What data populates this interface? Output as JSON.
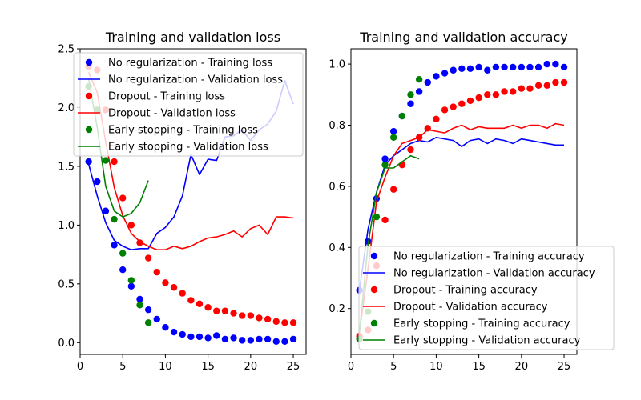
{
  "chart_data": [
    {
      "type": "line",
      "title": "Training and validation loss",
      "xlabel": "",
      "ylabel": "",
      "xlim": [
        0,
        26.5
      ],
      "ylim": [
        -0.1,
        2.5
      ],
      "xticks": [
        0,
        5,
        10,
        15,
        20,
        25
      ],
      "yticks": [
        0.0,
        0.5,
        1.0,
        1.5,
        2.0,
        2.5
      ],
      "legend_position": "top-right",
      "series": [
        {
          "name": "No regularization - Training loss",
          "kind": "scatter",
          "color": "#0000ff",
          "x": [
            1,
            2,
            3,
            4,
            5,
            6,
            7,
            8,
            9,
            10,
            11,
            12,
            13,
            14,
            15,
            16,
            17,
            18,
            19,
            20,
            21,
            22,
            23,
            24,
            25
          ],
          "values": [
            1.54,
            1.37,
            1.12,
            0.83,
            0.62,
            0.48,
            0.37,
            0.28,
            0.2,
            0.13,
            0.09,
            0.07,
            0.05,
            0.05,
            0.04,
            0.06,
            0.03,
            0.04,
            0.02,
            0.02,
            0.03,
            0.03,
            0.01,
            0.01,
            0.03
          ]
        },
        {
          "name": "No regularization - Validation loss",
          "kind": "line",
          "color": "#0000ff",
          "x": [
            1,
            2,
            3,
            4,
            5,
            6,
            7,
            8,
            9,
            10,
            11,
            12,
            13,
            14,
            15,
            16,
            17,
            18,
            19,
            20,
            21,
            22,
            23,
            24,
            25
          ],
          "values": [
            1.52,
            1.25,
            1.02,
            0.87,
            0.82,
            0.79,
            0.8,
            0.8,
            0.93,
            0.98,
            1.07,
            1.25,
            1.6,
            1.43,
            1.56,
            1.55,
            1.75,
            1.76,
            1.81,
            1.72,
            1.81,
            1.86,
            1.97,
            2.23,
            2.03
          ]
        },
        {
          "name": "Dropout - Training loss",
          "kind": "scatter",
          "color": "#ff0000",
          "x": [
            1,
            2,
            3,
            4,
            5,
            6,
            7,
            8,
            9,
            10,
            11,
            12,
            13,
            14,
            15,
            16,
            17,
            18,
            19,
            20,
            21,
            22,
            23,
            24,
            25
          ],
          "values": [
            2.35,
            2.32,
            1.98,
            1.54,
            1.23,
            1.0,
            0.85,
            0.72,
            0.6,
            0.51,
            0.47,
            0.42,
            0.36,
            0.33,
            0.3,
            0.27,
            0.27,
            0.25,
            0.23,
            0.23,
            0.21,
            0.2,
            0.18,
            0.17,
            0.17
          ]
        },
        {
          "name": "Dropout - Validation loss",
          "kind": "line",
          "color": "#ff0000",
          "x": [
            1,
            2,
            3,
            4,
            5,
            6,
            7,
            8,
            9,
            10,
            11,
            12,
            13,
            14,
            15,
            16,
            17,
            18,
            19,
            20,
            21,
            22,
            23,
            24,
            25
          ],
          "values": [
            2.3,
            2.13,
            1.71,
            1.32,
            1.08,
            0.93,
            0.86,
            0.82,
            0.79,
            0.79,
            0.82,
            0.8,
            0.82,
            0.86,
            0.89,
            0.9,
            0.92,
            0.95,
            0.9,
            0.97,
            1.0,
            0.92,
            1.07,
            1.07,
            1.06
          ]
        },
        {
          "name": "Early stopping - Training loss",
          "kind": "scatter",
          "color": "#008000",
          "x": [
            1,
            2,
            3,
            4,
            5,
            6,
            7,
            8
          ],
          "values": [
            2.18,
            1.98,
            1.55,
            1.05,
            0.76,
            0.53,
            0.32,
            0.17
          ]
        },
        {
          "name": "Early stopping  - Validation loss",
          "kind": "line",
          "color": "#008000",
          "x": [
            1,
            2,
            3,
            4,
            5,
            6,
            7,
            8
          ],
          "values": [
            2.25,
            1.83,
            1.33,
            1.12,
            1.07,
            1.1,
            1.19,
            1.38
          ]
        }
      ]
    },
    {
      "type": "line",
      "title": "Training and validation accuracy",
      "xlabel": "",
      "ylabel": "",
      "xlim": [
        0,
        26.5
      ],
      "ylim": [
        0.05,
        1.05
      ],
      "xticks": [
        0,
        5,
        10,
        15,
        20,
        25
      ],
      "yticks": [
        0.2,
        0.4,
        0.6,
        0.8,
        1.0
      ],
      "legend_position": "bottom-right",
      "series": [
        {
          "name": "No regularization - Training accuracy",
          "kind": "scatter",
          "color": "#0000ff",
          "x": [
            1,
            2,
            3,
            4,
            5,
            6,
            7,
            8,
            9,
            10,
            11,
            12,
            13,
            14,
            15,
            16,
            17,
            18,
            19,
            20,
            21,
            22,
            23,
            24,
            25
          ],
          "values": [
            0.26,
            0.42,
            0.56,
            0.69,
            0.78,
            0.83,
            0.87,
            0.91,
            0.94,
            0.96,
            0.97,
            0.98,
            0.985,
            0.985,
            0.99,
            0.98,
            0.99,
            0.99,
            0.99,
            0.99,
            0.99,
            0.99,
            1.0,
            1.0,
            0.99
          ]
        },
        {
          "name": "No regularization - Validation accuracy",
          "kind": "line",
          "color": "#0000ff",
          "x": [
            1,
            2,
            3,
            4,
            5,
            6,
            7,
            8,
            9,
            10,
            11,
            12,
            13,
            14,
            15,
            16,
            17,
            18,
            19,
            20,
            21,
            22,
            23,
            24,
            25
          ],
          "values": [
            0.26,
            0.46,
            0.58,
            0.67,
            0.7,
            0.72,
            0.74,
            0.75,
            0.745,
            0.76,
            0.755,
            0.75,
            0.73,
            0.75,
            0.755,
            0.74,
            0.755,
            0.75,
            0.74,
            0.755,
            0.75,
            0.745,
            0.74,
            0.735,
            0.735
          ]
        },
        {
          "name": "Dropout - Training accuracy",
          "kind": "scatter",
          "color": "#ff0000",
          "x": [
            1,
            2,
            3,
            4,
            5,
            6,
            7,
            8,
            9,
            10,
            11,
            12,
            13,
            14,
            15,
            16,
            17,
            18,
            19,
            20,
            21,
            22,
            23,
            24,
            25
          ],
          "values": [
            0.11,
            0.13,
            0.34,
            0.49,
            0.59,
            0.67,
            0.72,
            0.76,
            0.79,
            0.82,
            0.85,
            0.86,
            0.87,
            0.88,
            0.89,
            0.9,
            0.9,
            0.91,
            0.91,
            0.92,
            0.92,
            0.93,
            0.93,
            0.94,
            0.94
          ]
        },
        {
          "name": "Dropout - Validation accuracy",
          "kind": "line",
          "color": "#ff0000",
          "x": [
            1,
            2,
            3,
            4,
            5,
            6,
            7,
            8,
            9,
            10,
            11,
            12,
            13,
            14,
            15,
            16,
            17,
            18,
            19,
            20,
            21,
            22,
            23,
            24,
            25
          ],
          "values": [
            0.12,
            0.33,
            0.55,
            0.63,
            0.7,
            0.74,
            0.75,
            0.76,
            0.785,
            0.78,
            0.775,
            0.79,
            0.8,
            0.785,
            0.795,
            0.79,
            0.79,
            0.79,
            0.8,
            0.79,
            0.8,
            0.8,
            0.79,
            0.805,
            0.8
          ]
        },
        {
          "name": "Early stopping - Training accuracy",
          "kind": "scatter",
          "color": "#008000",
          "x": [
            1,
            2,
            3,
            4,
            5,
            6,
            7,
            8
          ],
          "values": [
            0.1,
            0.19,
            0.5,
            0.67,
            0.76,
            0.83,
            0.9,
            0.95
          ]
        },
        {
          "name": "Early stopping  - Validation accuracy",
          "kind": "line",
          "color": "#008000",
          "x": [
            1,
            2,
            3,
            4,
            5,
            6,
            7,
            8
          ],
          "values": [
            0.12,
            0.41,
            0.58,
            0.66,
            0.66,
            0.68,
            0.7,
            0.69
          ]
        }
      ]
    }
  ]
}
